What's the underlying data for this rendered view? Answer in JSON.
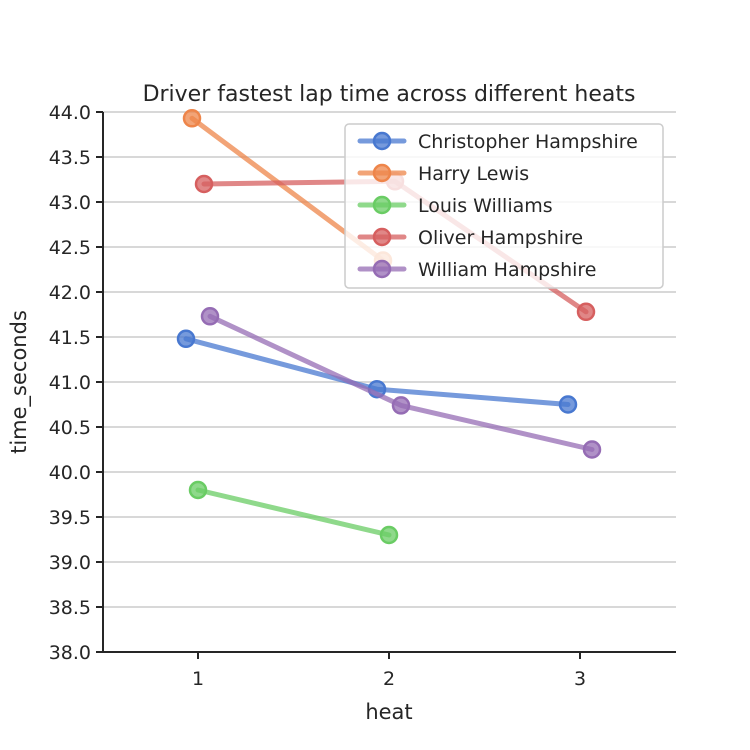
{
  "chart_data": {
    "type": "line",
    "title": "Driver fastest lap time across different heats",
    "xlabel": "heat",
    "ylabel": "time_seconds",
    "x_categories": [
      1,
      2,
      3
    ],
    "ylim": [
      38.0,
      44.0
    ],
    "yticks": [
      "38.0",
      "38.5",
      "39.0",
      "39.5",
      "40.0",
      "40.5",
      "41.0",
      "41.5",
      "42.0",
      "42.5",
      "43.0",
      "43.5",
      "44.0"
    ],
    "xticks": [
      "1",
      "2",
      "3"
    ],
    "grid": "horizontal",
    "legend_position": "top-right",
    "series": [
      {
        "name": "Christopher Hampshire",
        "color": "#4878d0",
        "points": [
          [
            1,
            41.48
          ],
          [
            2,
            40.92
          ],
          [
            3,
            40.75
          ]
        ]
      },
      {
        "name": "Harry Lewis",
        "color": "#ee854a",
        "points": [
          [
            1,
            43.93
          ],
          [
            2,
            42.35
          ]
        ]
      },
      {
        "name": "Louis Williams",
        "color": "#6acc64",
        "points": [
          [
            1,
            39.8
          ],
          [
            2,
            39.3
          ]
        ]
      },
      {
        "name": "Oliver Hampshire",
        "color": "#d65f5f",
        "points": [
          [
            1,
            43.2
          ],
          [
            2,
            43.23
          ],
          [
            3,
            41.78
          ]
        ]
      },
      {
        "name": "William Hampshire",
        "color": "#956cb4",
        "points": [
          [
            1,
            41.73
          ],
          [
            2,
            40.74
          ],
          [
            3,
            40.25
          ]
        ]
      }
    ]
  }
}
